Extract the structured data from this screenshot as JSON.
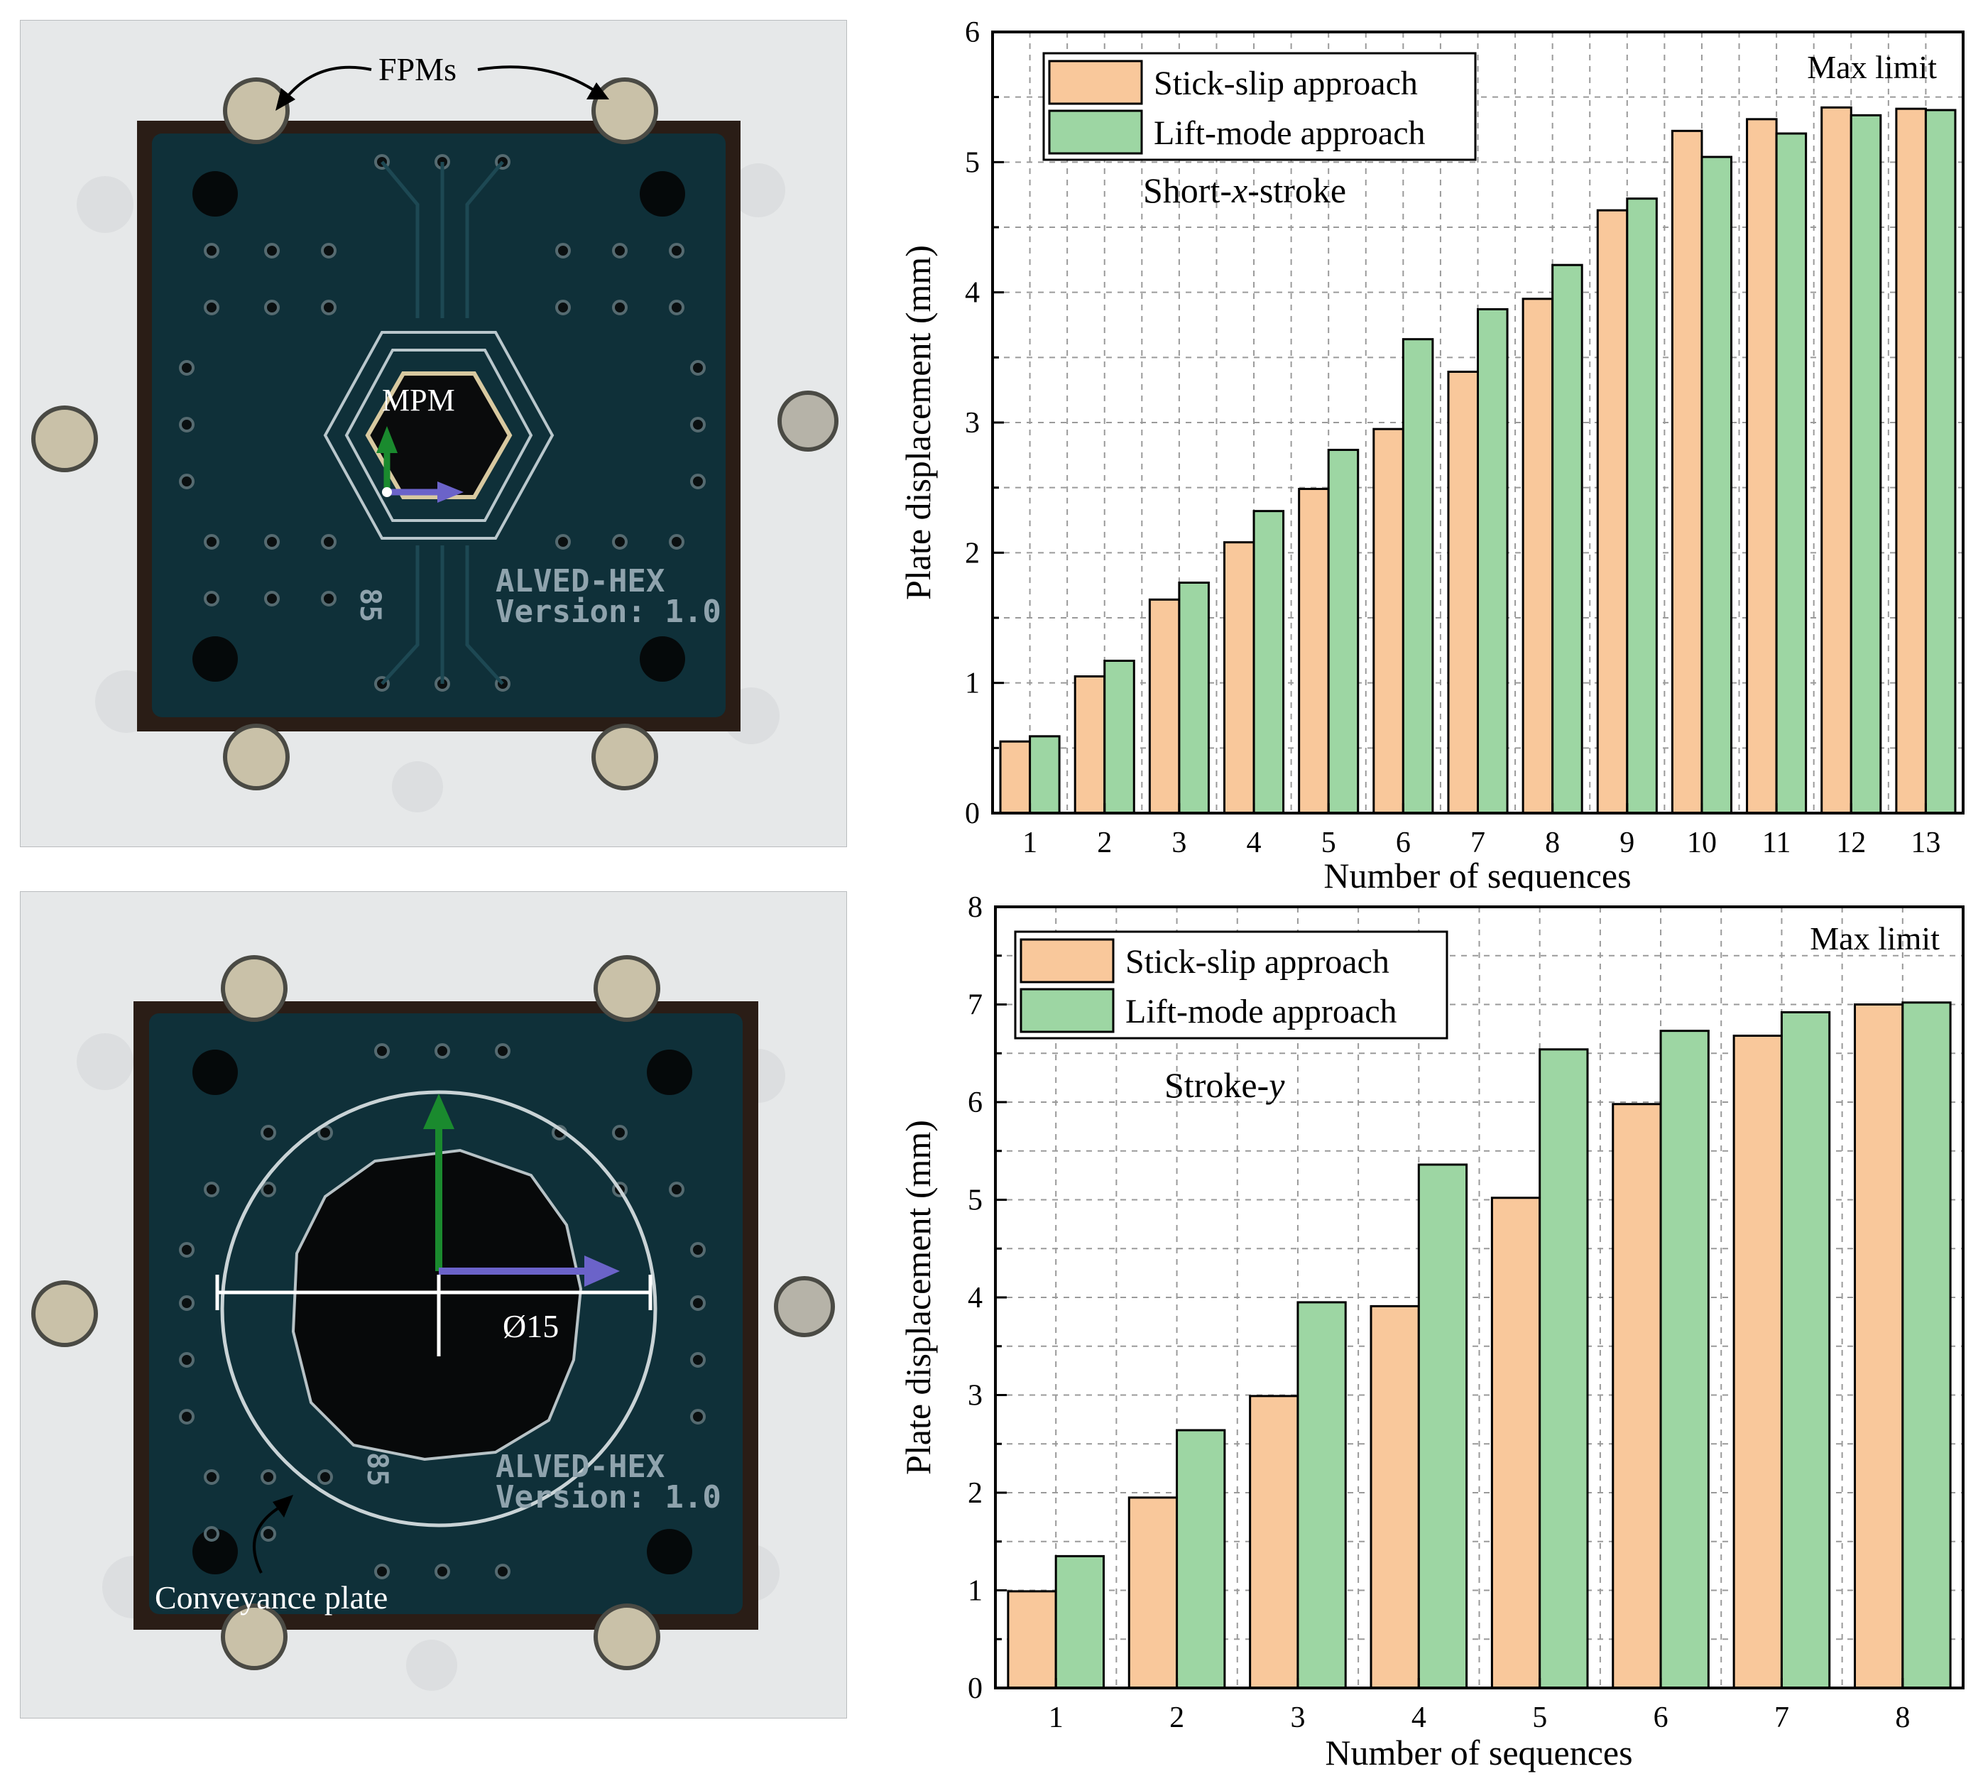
{
  "photos": {
    "top": {
      "fpm_label": "FPMs",
      "mpm_label": "MPM",
      "pcb_name": "ALVED-HEX",
      "pcb_version": "Version: 1.0",
      "pcb_id": "85"
    },
    "bottom": {
      "diameter_label": "Ø15",
      "conveyance_label": "Conveyance plate",
      "pcb_name": "ALVED-HEX",
      "pcb_version": "Version: 1.0",
      "pcb_id": "85"
    }
  },
  "colors": {
    "stick_slip": "#f9c89b",
    "lift_mode": "#9dd6a3",
    "arrow_green": "#1a8a2e",
    "arrow_blue": "#6b63c9",
    "pcb": "#0f3039",
    "background": "#e7e9ea"
  },
  "chart_data": [
    {
      "type": "bar",
      "title": "",
      "annotation": "Short-x-stroke",
      "annotation_parts": {
        "pre": "Short-",
        "italic": "x",
        "post": "-stroke"
      },
      "max_limit_label": "Max limit",
      "xlabel": "Number of sequences",
      "ylabel": "Plate displacement (mm)",
      "ylim": [
        0,
        6
      ],
      "yticks": [
        "0",
        "1",
        "2",
        "3",
        "4",
        "5",
        "6"
      ],
      "grid": true,
      "legend_position": "top-left",
      "categories": [
        "1",
        "2",
        "3",
        "4",
        "5",
        "6",
        "7",
        "8",
        "9",
        "10",
        "11",
        "12",
        "13"
      ],
      "series": [
        {
          "name": "Stick-slip approach",
          "values": [
            0.55,
            1.05,
            1.64,
            2.08,
            2.49,
            2.95,
            3.39,
            3.95,
            4.63,
            5.24,
            5.33,
            5.42,
            5.41
          ]
        },
        {
          "name": "Lift-mode approach",
          "values": [
            0.59,
            1.17,
            1.77,
            2.32,
            2.79,
            3.64,
            3.87,
            4.21,
            4.72,
            5.04,
            5.22,
            5.36,
            5.4
          ]
        }
      ]
    },
    {
      "type": "bar",
      "title": "",
      "annotation": "Stroke-y",
      "annotation_parts": {
        "pre": "Stroke-",
        "italic": "y",
        "post": ""
      },
      "max_limit_label": "Max limit",
      "xlabel": "Number of sequences",
      "ylabel": "Plate displacement (mm)",
      "ylim": [
        0,
        8
      ],
      "yticks": [
        "0",
        "1",
        "2",
        "3",
        "4",
        "5",
        "6",
        "7",
        "8"
      ],
      "grid": true,
      "legend_position": "top-left",
      "categories": [
        "1",
        "2",
        "3",
        "4",
        "5",
        "6",
        "7",
        "8"
      ],
      "series": [
        {
          "name": "Stick-slip approach",
          "values": [
            0.99,
            1.95,
            2.99,
            3.91,
            5.02,
            5.98,
            6.68,
            7.0
          ]
        },
        {
          "name": "Lift-mode approach",
          "values": [
            1.35,
            2.64,
            3.95,
            5.36,
            6.54,
            6.73,
            6.92,
            7.02
          ]
        }
      ]
    }
  ]
}
